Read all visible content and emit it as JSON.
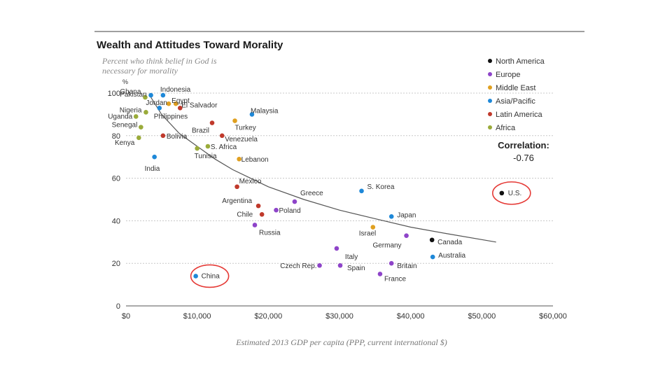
{
  "colors": {
    "North America": "#111111",
    "Europe": "#8e44c9",
    "Middle East": "#e0a020",
    "Asia/Pacific": "#1e88d8",
    "Latin America": "#c0392b",
    "Africa": "#9aab3a",
    "highlight": "#e53935",
    "gridline": "#c8c8c8",
    "trendline": "#555555"
  },
  "chart_data": {
    "type": "scatter",
    "title": "Wealth and Attitudes Toward Morality",
    "subtitle_lines": [
      "Percent who think belief in God is",
      "necessary for morality"
    ],
    "ylabel_unit": "%",
    "xlabel": "Estimated 2013 GDP per capita (PPP, current international $)",
    "xlim": [
      0,
      60000
    ],
    "ylim": [
      0,
      100
    ],
    "x_ticks": [
      0,
      10000,
      20000,
      30000,
      40000,
      50000,
      60000
    ],
    "x_tick_labels": [
      "$0",
      "$10,000",
      "$20,000",
      "$30,000",
      "$40,000",
      "$50,000",
      "$60,000"
    ],
    "y_ticks": [
      0,
      20,
      40,
      60,
      80,
      100
    ],
    "y_tick_labels": [
      "0",
      "20",
      "40",
      "60",
      "80",
      "100"
    ],
    "legend": [
      "North America",
      "Europe",
      "Middle East",
      "Asia/Pacific",
      "Latin America",
      "Africa"
    ],
    "correlation_label": "Correlation:",
    "correlation_value": "-0.76",
    "highlighted": [
      "China",
      "U.S."
    ],
    "trendline": {
      "x": [
        3500,
        5000,
        7500,
        10000,
        12500,
        15000,
        17500,
        20000,
        25000,
        30000,
        35000,
        40000,
        45000,
        52000
      ],
      "y": [
        98,
        90,
        81,
        75,
        69,
        64,
        60,
        56,
        50,
        45,
        41,
        37,
        34,
        30
      ]
    },
    "points": [
      {
        "name": "Ghana",
        "region": "Africa",
        "x": 2700,
        "y": 98
      },
      {
        "name": "Indonesia",
        "region": "Asia/Pacific",
        "x": 5200,
        "y": 99
      },
      {
        "name": "Pakistan",
        "region": "Asia/Pacific",
        "x": 3500,
        "y": 99
      },
      {
        "name": "Jordan",
        "region": "Middle East",
        "x": 6000,
        "y": 95
      },
      {
        "name": "Egypt",
        "region": "Middle East",
        "x": 7000,
        "y": 95
      },
      {
        "name": "Nigeria",
        "region": "Africa",
        "x": 2800,
        "y": 91
      },
      {
        "name": "Philippines",
        "region": "Asia/Pacific",
        "x": 4700,
        "y": 93
      },
      {
        "name": "El Salvador",
        "region": "Latin America",
        "x": 7600,
        "y": 93
      },
      {
        "name": "Uganda",
        "region": "Africa",
        "x": 1400,
        "y": 89
      },
      {
        "name": "Senegal",
        "region": "Africa",
        "x": 2100,
        "y": 84
      },
      {
        "name": "Kenya",
        "region": "Africa",
        "x": 1800,
        "y": 79
      },
      {
        "name": "Bolivia",
        "region": "Latin America",
        "x": 5200,
        "y": 80
      },
      {
        "name": "India",
        "region": "Asia/Pacific",
        "x": 4000,
        "y": 70
      },
      {
        "name": "Brazil",
        "region": "Latin America",
        "x": 12100,
        "y": 86
      },
      {
        "name": "Malaysia",
        "region": "Asia/Pacific",
        "x": 17700,
        "y": 90
      },
      {
        "name": "Turkey",
        "region": "Middle East",
        "x": 15300,
        "y": 87
      },
      {
        "name": "Venezuela",
        "region": "Latin America",
        "x": 13500,
        "y": 80
      },
      {
        "name": "S. Africa",
        "region": "Africa",
        "x": 11500,
        "y": 75
      },
      {
        "name": "Tunisia",
        "region": "Africa",
        "x": 10000,
        "y": 74
      },
      {
        "name": "Lebanon",
        "region": "Middle East",
        "x": 15900,
        "y": 69
      },
      {
        "name": "Mexico",
        "region": "Latin America",
        "x": 15600,
        "y": 56
      },
      {
        "name": "Greece",
        "region": "Europe",
        "x": 23700,
        "y": 49
      },
      {
        "name": "S. Korea",
        "region": "Asia/Pacific",
        "x": 33100,
        "y": 54
      },
      {
        "name": "U.S.",
        "region": "North America",
        "x": 52800,
        "y": 53
      },
      {
        "name": "Argentina",
        "region": "Latin America",
        "x": 18600,
        "y": 47
      },
      {
        "name": "Poland",
        "region": "Europe",
        "x": 21100,
        "y": 45
      },
      {
        "name": "Chile",
        "region": "Latin America",
        "x": 19100,
        "y": 43
      },
      {
        "name": "Japan",
        "region": "Asia/Pacific",
        "x": 37300,
        "y": 42
      },
      {
        "name": "Russia",
        "region": "Europe",
        "x": 18100,
        "y": 38
      },
      {
        "name": "Israel",
        "region": "Middle East",
        "x": 34700,
        "y": 37
      },
      {
        "name": "Germany",
        "region": "Europe",
        "x": 39400,
        "y": 33
      },
      {
        "name": "Canada",
        "region": "North America",
        "x": 43000,
        "y": 31
      },
      {
        "name": "Italy",
        "region": "Europe",
        "x": 29600,
        "y": 27
      },
      {
        "name": "Australia",
        "region": "Asia/Pacific",
        "x": 43100,
        "y": 23
      },
      {
        "name": "Czech Rep.",
        "region": "Europe",
        "x": 27200,
        "y": 19
      },
      {
        "name": "Spain",
        "region": "Europe",
        "x": 30100,
        "y": 19
      },
      {
        "name": "Britain",
        "region": "Europe",
        "x": 37300,
        "y": 20
      },
      {
        "name": "France",
        "region": "Europe",
        "x": 35700,
        "y": 15
      },
      {
        "name": "China",
        "region": "Asia/Pacific",
        "x": 9800,
        "y": 14
      }
    ]
  }
}
